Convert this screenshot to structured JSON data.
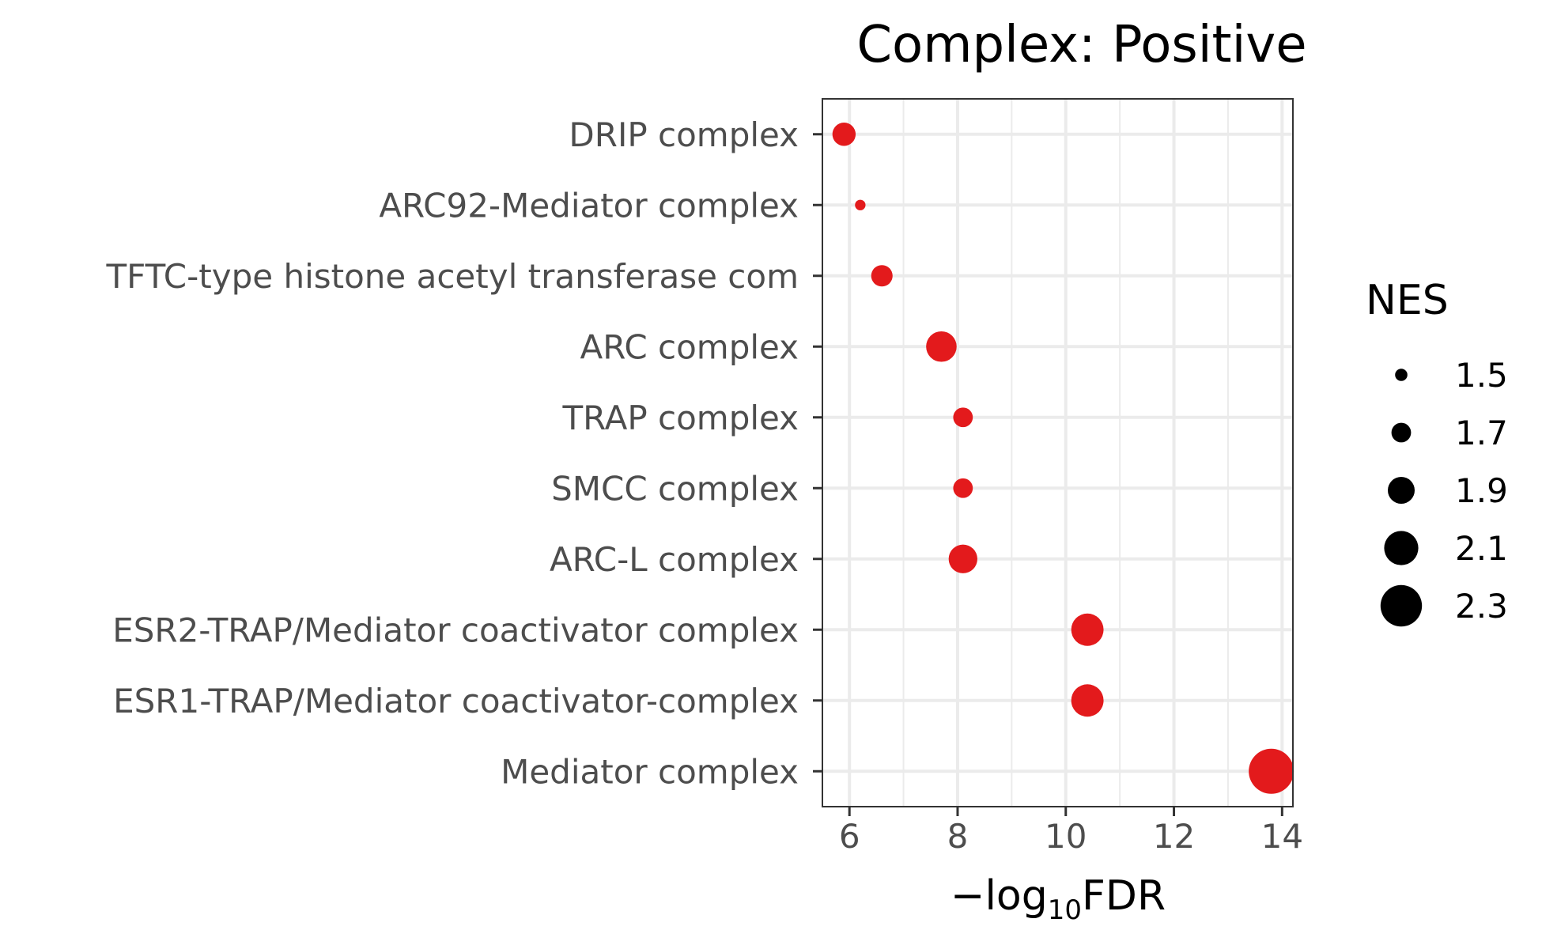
{
  "chart_data": {
    "type": "scatter",
    "title": "Complex: Positive",
    "xlabel": {
      "prefix": "−log",
      "subscript": "10",
      "suffix": "FDR"
    },
    "ylabel": "",
    "xlim": [
      5.5,
      14.2
    ],
    "xticks": [
      6,
      8,
      10,
      12,
      14
    ],
    "grid": true,
    "point_color": "#e31a1c",
    "categories": [
      "DRIP complex",
      "ARC92-Mediator complex",
      "TFTC-type histone acetyl transferase com",
      "ARC complex",
      "TRAP complex",
      "SMCC complex",
      "ARC-L complex",
      "ESR2-TRAP/Mediator coactivator complex",
      "ESR1-TRAP/Mediator coactivator-complex",
      "Mediator complex"
    ],
    "x": [
      5.9,
      6.2,
      6.6,
      7.7,
      8.1,
      8.1,
      8.1,
      10.4,
      10.4,
      13.8
    ],
    "nes": [
      1.8,
      1.45,
      1.75,
      2.0,
      1.7,
      1.7,
      1.95,
      2.05,
      2.05,
      2.4
    ],
    "legend": {
      "title": "NES",
      "position": "right",
      "values": [
        1.5,
        1.7,
        1.9,
        2.1,
        2.3
      ],
      "labels": [
        "1.5",
        "1.7",
        "1.9",
        "2.1",
        "2.3"
      ]
    }
  }
}
